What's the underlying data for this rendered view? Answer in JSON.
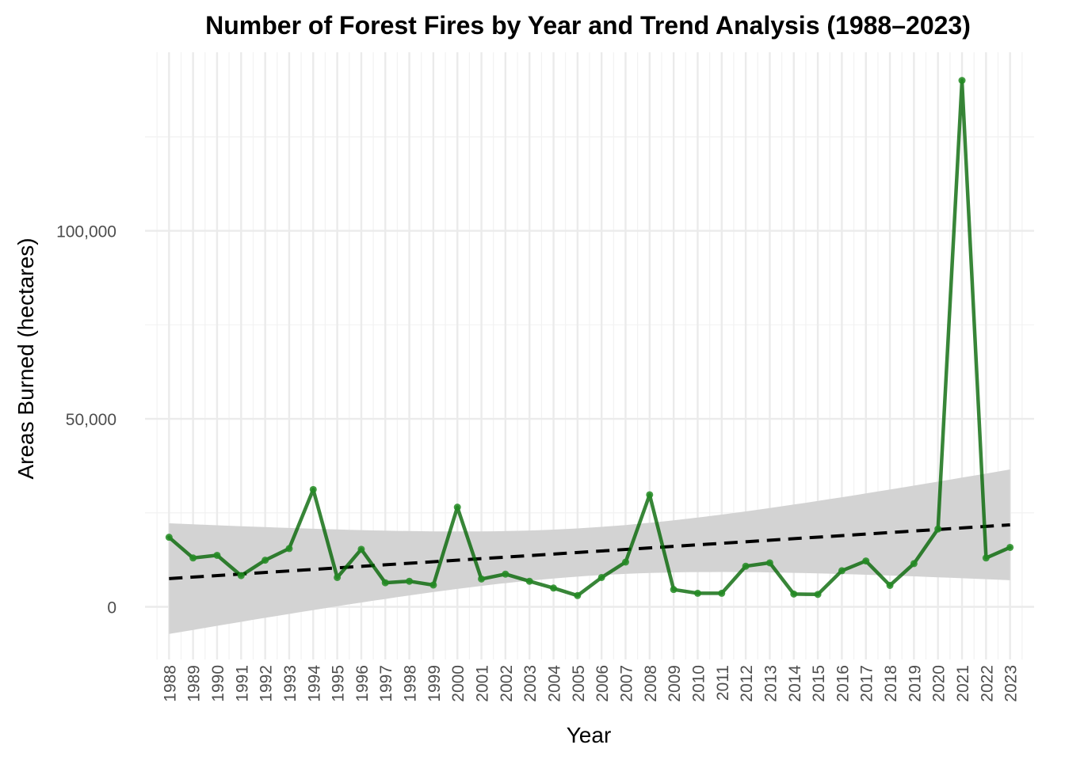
{
  "chart_data": {
    "type": "line",
    "title": "Number of Forest Fires by Year and Trend Analysis (1988–2023)",
    "xlabel": "Year",
    "ylabel": "Areas Burned (hectares)",
    "x": [
      1988,
      1989,
      1990,
      1991,
      1992,
      1993,
      1994,
      1995,
      1996,
      1997,
      1998,
      1999,
      2000,
      2001,
      2002,
      2003,
      2004,
      2005,
      2006,
      2007,
      2008,
      2009,
      2010,
      2011,
      2012,
      2013,
      2014,
      2015,
      2016,
      2017,
      2018,
      2019,
      2020,
      2021,
      2022,
      2023
    ],
    "x_tick_labels": [
      "1988",
      "1989",
      "1990",
      "1991",
      "1992",
      "1993",
      "1994",
      "1995",
      "1996",
      "1997",
      "1998",
      "1999",
      "2000",
      "2001",
      "2002",
      "2003",
      "2004",
      "2005",
      "2006",
      "2007",
      "2008",
      "2009",
      "2010",
      "2011",
      "2012",
      "2013",
      "2014",
      "2015",
      "2016",
      "2017",
      "2018",
      "2019",
      "2020",
      "2021",
      "2022",
      "2023"
    ],
    "series": [
      {
        "values": [
          18500,
          13000,
          13700,
          8300,
          12400,
          15500,
          31200,
          7800,
          15300,
          6400,
          6800,
          5800,
          26500,
          7400,
          8700,
          6800,
          5000,
          3000,
          7800,
          11900,
          29800,
          4600,
          3600,
          3600,
          10800,
          11700,
          3400,
          3300,
          9600,
          12200,
          5700,
          11500,
          20700,
          140000,
          13000,
          15800
        ],
        "color": "#006400"
      }
    ],
    "trend": {
      "type": "linear",
      "style": "dashed",
      "color": "#000000",
      "start": 7500,
      "end": 21800,
      "ci_lower_start": -7200,
      "ci_upper_start": 22500,
      "ci_lower_end": 7300,
      "ci_upper_end": 36500,
      "band_color": "#d3d3d3"
    },
    "y_ticks": [
      0,
      50000,
      100000
    ],
    "y_tick_labels": [
      "0",
      "50,000",
      "100,000"
    ],
    "ylim": [
      -14000,
      147500
    ],
    "xlim": [
      1987,
      2024
    ],
    "grid": true,
    "legend": "none"
  }
}
